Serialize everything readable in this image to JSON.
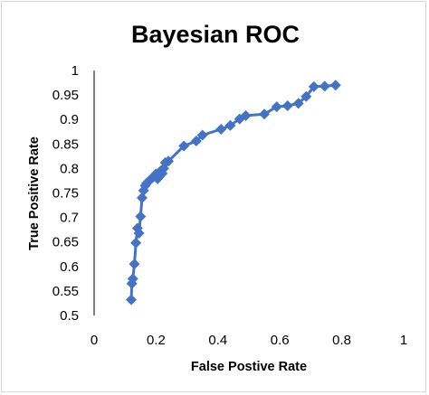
{
  "chart_data": {
    "type": "line",
    "title": "Bayesian ROC",
    "xlabel": "False Postive Rate",
    "ylabel": "True Positive Rate",
    "xlim": [
      0,
      1
    ],
    "ylim": [
      0.5,
      1
    ],
    "x_ticks": [
      "0",
      "0.2",
      "0.4",
      "0.6",
      "0.8",
      "1"
    ],
    "y_ticks": [
      "0.5",
      "0.55",
      "0.6",
      "0.65",
      "0.7",
      "0.75",
      "0.8",
      "0.85",
      "0.9",
      "0.95",
      "1"
    ],
    "grid": false,
    "legend": "none",
    "colors": {
      "series": "#4472c4",
      "axis": "#000000"
    },
    "series": [
      {
        "marker": "diamond",
        "x": [
          0.12,
          0.122,
          0.125,
          0.13,
          0.135,
          0.14,
          0.145,
          0.15,
          0.155,
          0.16,
          0.165,
          0.17,
          0.18,
          0.19,
          0.2,
          0.205,
          0.21,
          0.215,
          0.22,
          0.225,
          0.23,
          0.24,
          0.29,
          0.33,
          0.35,
          0.41,
          0.44,
          0.47,
          0.49,
          0.55,
          0.59,
          0.625,
          0.66,
          0.685,
          0.71,
          0.745,
          0.78
        ],
        "y": [
          0.532,
          0.565,
          0.575,
          0.605,
          0.648,
          0.678,
          0.668,
          0.702,
          0.74,
          0.755,
          0.765,
          0.77,
          0.776,
          0.782,
          0.789,
          0.779,
          0.783,
          0.795,
          0.79,
          0.8,
          0.812,
          0.815,
          0.846,
          0.856,
          0.868,
          0.88,
          0.888,
          0.901,
          0.908,
          0.911,
          0.926,
          0.928,
          0.933,
          0.947,
          0.967,
          0.968,
          0.97
        ]
      }
    ]
  }
}
